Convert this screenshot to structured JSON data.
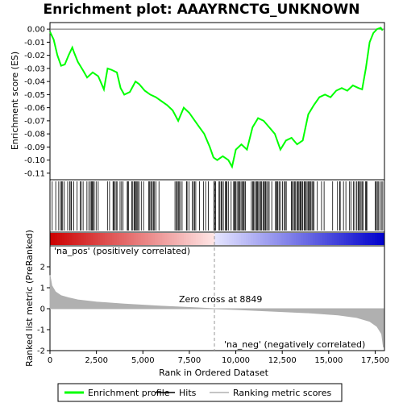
{
  "chart_data": {
    "type": "line",
    "title": "Enrichment plot: AAAYRNCTG_UNKNOWN",
    "top_panel": {
      "ylabel": "Enrichment score (ES)",
      "ylim": [
        -0.115,
        0.005
      ],
      "yticks": [
        0.0,
        -0.01,
        -0.02,
        -0.03,
        -0.04,
        -0.05,
        -0.06,
        -0.07,
        -0.08,
        -0.09,
        -0.1,
        -0.11
      ],
      "ytick_labels": [
        "0.00",
        "-0.01",
        "-0.02",
        "-0.03",
        "-0.04",
        "-0.05",
        "-0.06",
        "-0.07",
        "-0.08",
        "-0.09",
        "-0.10",
        "-0.11"
      ],
      "grid": false,
      "series": [
        {
          "name": "Enrichment profile",
          "color": "#00ff00",
          "x": [
            0,
            200,
            400,
            600,
            800,
            1000,
            1200,
            1300,
            1500,
            1800,
            2000,
            2300,
            2600,
            2900,
            3100,
            3300,
            3600,
            3800,
            4000,
            4300,
            4600,
            4800,
            5100,
            5400,
            5700,
            6000,
            6300,
            6600,
            6900,
            7200,
            7500,
            7800,
            8000,
            8300,
            8600,
            8800,
            9000,
            9300,
            9600,
            9800,
            10000,
            10300,
            10600,
            10900,
            11200,
            11500,
            11800,
            12100,
            12400,
            12700,
            13000,
            13300,
            13600,
            13900,
            14200,
            14500,
            14800,
            15100,
            15400,
            15700,
            16000,
            16300,
            16600,
            16800,
            17000,
            17200,
            17400,
            17600,
            17800,
            17900
          ],
          "y": [
            -0.002,
            -0.008,
            -0.02,
            -0.028,
            -0.027,
            -0.02,
            -0.014,
            -0.018,
            -0.025,
            -0.032,
            -0.037,
            -0.033,
            -0.036,
            -0.046,
            -0.03,
            -0.031,
            -0.033,
            -0.045,
            -0.05,
            -0.048,
            -0.04,
            -0.042,
            -0.047,
            -0.05,
            -0.052,
            -0.055,
            -0.058,
            -0.062,
            -0.07,
            -0.06,
            -0.064,
            -0.07,
            -0.074,
            -0.08,
            -0.09,
            -0.098,
            -0.1,
            -0.097,
            -0.1,
            -0.105,
            -0.092,
            -0.088,
            -0.092,
            -0.075,
            -0.068,
            -0.07,
            -0.075,
            -0.08,
            -0.092,
            -0.085,
            -0.083,
            -0.088,
            -0.085,
            -0.065,
            -0.058,
            -0.052,
            -0.05,
            -0.052,
            -0.047,
            -0.045,
            -0.047,
            -0.043,
            -0.045,
            -0.046,
            -0.03,
            -0.01,
            -0.003,
            0.0,
            0.001,
            -0.001
          ]
        }
      ]
    },
    "hits": {
      "name": "Hits",
      "color": "#000000",
      "dense_ranges": [
        [
          1000,
          1300
        ],
        [
          2100,
          2400
        ],
        [
          3400,
          3600
        ],
        [
          4400,
          4800
        ],
        [
          5200,
          5700
        ],
        [
          6700,
          7000
        ],
        [
          9200,
          9500
        ],
        [
          9800,
          10600
        ],
        [
          10800,
          11800
        ],
        [
          12000,
          12400
        ],
        [
          13300,
          14200
        ],
        [
          16600,
          17100
        ],
        [
          17500,
          17900
        ]
      ]
    },
    "bottom_panel": {
      "xlabel": "Rank in Ordered Dataset",
      "ylabel": "Ranked list metric (PreRanked)",
      "xlim": [
        0,
        18000
      ],
      "ylim": [
        -2,
        3
      ],
      "xticks": [
        0,
        2500,
        5000,
        7500,
        10000,
        12500,
        15000,
        17500
      ],
      "xtick_labels": [
        "0",
        "2,500",
        "5,000",
        "7,500",
        "10,000",
        "12,500",
        "15,000",
        "17,500"
      ],
      "yticks": [
        -2,
        -1,
        0,
        1,
        2
      ],
      "ytick_labels": [
        "-2",
        "-1",
        "0",
        "1",
        "2"
      ],
      "metric_x": [
        0,
        100,
        300,
        600,
        1000,
        1500,
        2500,
        4000,
        6000,
        8000,
        8849,
        10000,
        12000,
        14000,
        15500,
        16500,
        17200,
        17600,
        17850,
        17950
      ],
      "metric_y": [
        1.6,
        1.1,
        0.8,
        0.62,
        0.52,
        0.42,
        0.32,
        0.22,
        0.12,
        0.04,
        0.0,
        -0.04,
        -0.12,
        -0.2,
        -0.3,
        -0.42,
        -0.6,
        -0.85,
        -1.2,
        -1.85
      ],
      "zero_cross_label": "Zero cross at 8849",
      "zero_cross": 8849,
      "pos_label": "'na_pos' (positively correlated)",
      "neg_label": "'na_neg' (negatively correlated)",
      "pos_color": "#cc0000",
      "neg_color": "#0000cc",
      "fill_color": "#b0b0b0"
    },
    "legend": {
      "placement": "bottom",
      "entries": [
        {
          "label": "Enrichment profile",
          "color": "#00ff00"
        },
        {
          "label": "Hits",
          "color": "#000000"
        },
        {
          "label": "Ranking metric scores",
          "color": "#b0b0b0"
        }
      ]
    }
  }
}
